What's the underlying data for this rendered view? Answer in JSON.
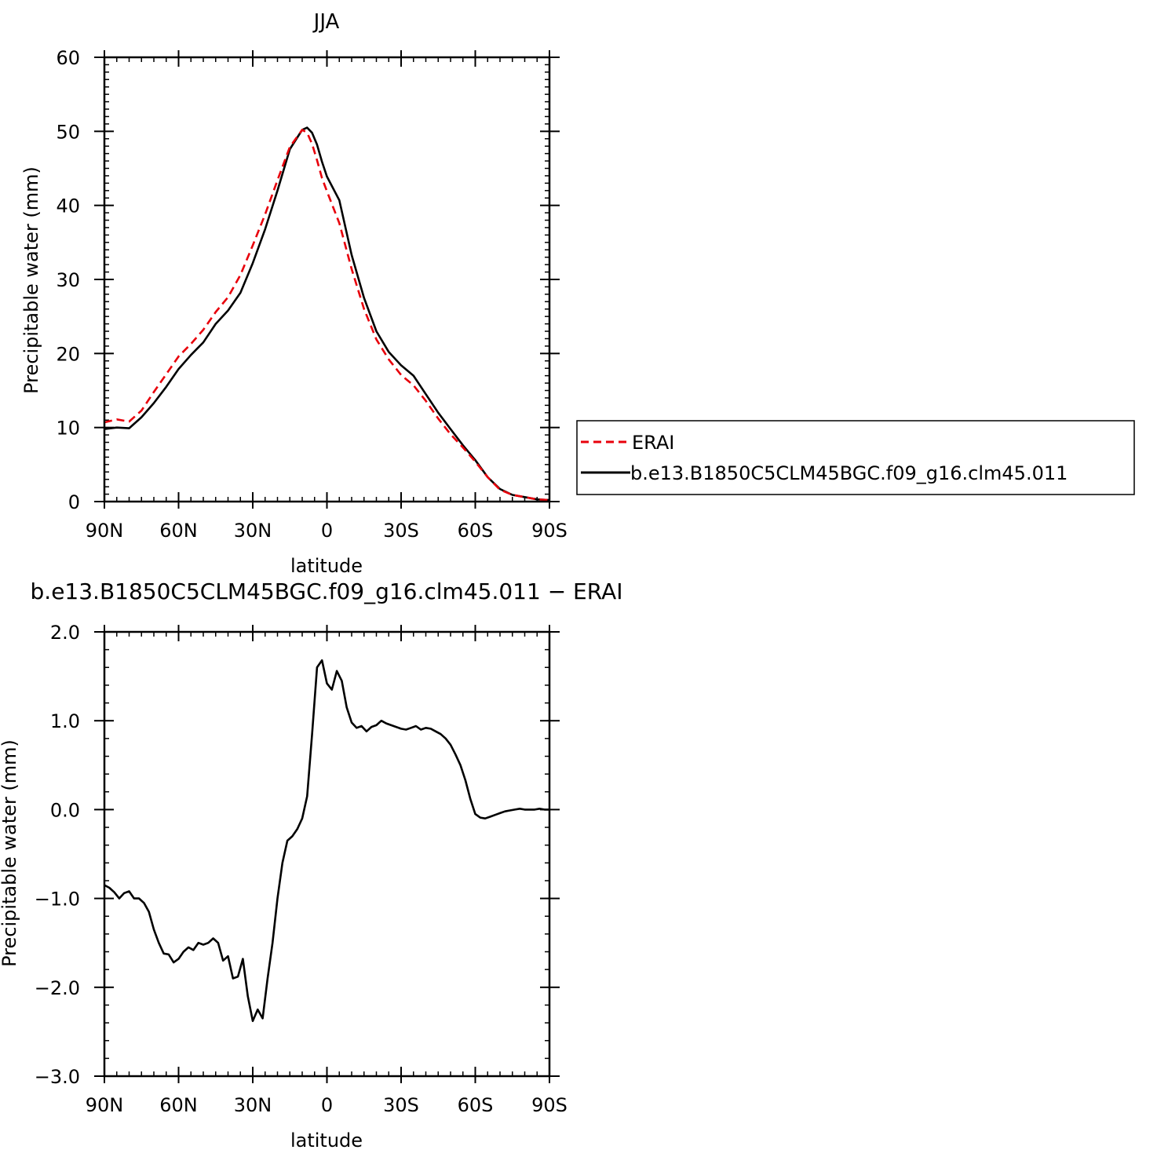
{
  "chart_data": [
    {
      "type": "line",
      "title": "JJA",
      "xlabel": "latitude",
      "ylabel": "Precipitable water (mm)",
      "xlim": [
        -90,
        90
      ],
      "ylim": [
        0,
        60
      ],
      "xticks": [
        -90,
        -60,
        -30,
        0,
        30,
        60,
        90
      ],
      "xtick_labels": [
        "90N",
        "60N",
        "30N",
        "0",
        "30S",
        "60S",
        "90S"
      ],
      "yticks": [
        0,
        10,
        20,
        30,
        40,
        50,
        60
      ],
      "ytick_labels": [
        "0",
        "10",
        "20",
        "30",
        "40",
        "50",
        "60"
      ],
      "legend": {
        "placement": "right"
      },
      "series": [
        {
          "name": "ERAI",
          "color": "#e8000b",
          "dash": "dashed",
          "x": [
            -90,
            -85,
            -80,
            -75,
            -70,
            -65,
            -60,
            -55,
            -50,
            -45,
            -40,
            -35,
            -30,
            -25,
            -20,
            -15,
            -10,
            -8,
            -6,
            -4,
            -2,
            0,
            5,
            10,
            15,
            20,
            25,
            30,
            35,
            40,
            45,
            50,
            55,
            60,
            65,
            70,
            75,
            80,
            85,
            90
          ],
          "values": [
            10.7,
            11.1,
            10.8,
            12.3,
            14.8,
            17.2,
            19.6,
            21.3,
            23.2,
            25.6,
            27.6,
            30.6,
            34.6,
            38.8,
            43.4,
            47.9,
            50.2,
            49.8,
            48.3,
            46.1,
            43.7,
            41.9,
            37.6,
            31.4,
            26.0,
            21.9,
            19.2,
            17.1,
            15.7,
            13.6,
            11.2,
            9.1,
            7.3,
            5.4,
            3.3,
            1.6,
            0.9,
            0.6,
            0.3,
            0.2
          ]
        },
        {
          "name": "b.e13.B1850C5CLM45BGC.f09_g16.clm45.011",
          "color": "#000000",
          "dash": "solid",
          "x": [
            -90,
            -85,
            -80,
            -75,
            -70,
            -65,
            -60,
            -55,
            -50,
            -45,
            -40,
            -35,
            -30,
            -25,
            -20,
            -15,
            -10,
            -8,
            -6,
            -4,
            -2,
            0,
            5,
            10,
            15,
            20,
            25,
            30,
            35,
            40,
            45,
            50,
            55,
            60,
            65,
            70,
            75,
            80,
            85,
            90
          ],
          "values": [
            9.8,
            10.0,
            9.9,
            11.4,
            13.3,
            15.5,
            17.9,
            19.8,
            21.5,
            24.0,
            25.8,
            28.2,
            32.2,
            36.8,
            42.0,
            47.6,
            50.2,
            50.5,
            49.8,
            48.2,
            45.9,
            43.9,
            40.7,
            33.3,
            27.5,
            23.0,
            20.2,
            18.4,
            17.0,
            14.5,
            12.0,
            9.8,
            7.6,
            5.6,
            3.3,
            1.7,
            0.9,
            0.6,
            0.3,
            0.2
          ]
        }
      ]
    },
    {
      "type": "line",
      "title": "b.e13.B1850C5CLM45BGC.f09_g16.clm45.011 − ERAI",
      "xlabel": "latitude",
      "ylabel": "Precipitable water (mm)",
      "xlim": [
        -90,
        90
      ],
      "ylim": [
        -3.0,
        2.0
      ],
      "xticks": [
        -90,
        -60,
        -30,
        0,
        30,
        60,
        90
      ],
      "xtick_labels": [
        "90N",
        "60N",
        "30N",
        "0",
        "30S",
        "60S",
        "90S"
      ],
      "yticks": [
        -3.0,
        -2.0,
        -1.0,
        0.0,
        1.0,
        2.0
      ],
      "ytick_labels": [
        "−3.0",
        "−2.0",
        "−1.0",
        "0.0",
        "1.0",
        "2.0"
      ],
      "series": [
        {
          "color": "#000000",
          "x": [
            -90,
            -88,
            -86,
            -84,
            -82,
            -80,
            -78,
            -76,
            -74,
            -72,
            -70,
            -68,
            -66,
            -64,
            -62,
            -60,
            -58,
            -56,
            -54,
            -52,
            -50,
            -48,
            -46,
            -44,
            -42,
            -40,
            -38,
            -36,
            -34,
            -32,
            -30,
            -28,
            -26,
            -24,
            -22,
            -20,
            -18,
            -16,
            -14,
            -12,
            -10,
            -8,
            -6,
            -4,
            -2,
            0,
            2,
            4,
            6,
            8,
            10,
            12,
            14,
            16,
            18,
            20,
            22,
            24,
            26,
            28,
            30,
            32,
            34,
            36,
            38,
            40,
            42,
            44,
            46,
            48,
            50,
            52,
            54,
            56,
            58,
            60,
            62,
            64,
            66,
            68,
            70,
            72,
            74,
            76,
            78,
            80,
            82,
            84,
            86,
            88,
            90
          ],
          "values": [
            -0.85,
            -0.88,
            -0.93,
            -1.0,
            -0.94,
            -0.92,
            -1.0,
            -1.0,
            -1.05,
            -1.15,
            -1.35,
            -1.5,
            -1.62,
            -1.63,
            -1.72,
            -1.68,
            -1.6,
            -1.55,
            -1.58,
            -1.5,
            -1.52,
            -1.5,
            -1.45,
            -1.5,
            -1.7,
            -1.65,
            -1.9,
            -1.88,
            -1.68,
            -2.1,
            -2.38,
            -2.25,
            -2.35,
            -1.9,
            -1.5,
            -1.0,
            -0.6,
            -0.35,
            -0.3,
            -0.22,
            -0.1,
            0.15,
            0.85,
            1.6,
            1.68,
            1.42,
            1.35,
            1.56,
            1.45,
            1.15,
            0.98,
            0.92,
            0.94,
            0.88,
            0.93,
            0.95,
            1.0,
            0.97,
            0.95,
            0.93,
            0.91,
            0.9,
            0.92,
            0.94,
            0.9,
            0.92,
            0.91,
            0.88,
            0.85,
            0.8,
            0.73,
            0.62,
            0.5,
            0.33,
            0.12,
            -0.05,
            -0.09,
            -0.1,
            -0.08,
            -0.06,
            -0.04,
            -0.02,
            -0.01,
            0.0,
            0.01,
            0.0,
            0.0,
            0.0,
            0.01,
            0.0,
            0.0
          ]
        }
      ]
    }
  ]
}
